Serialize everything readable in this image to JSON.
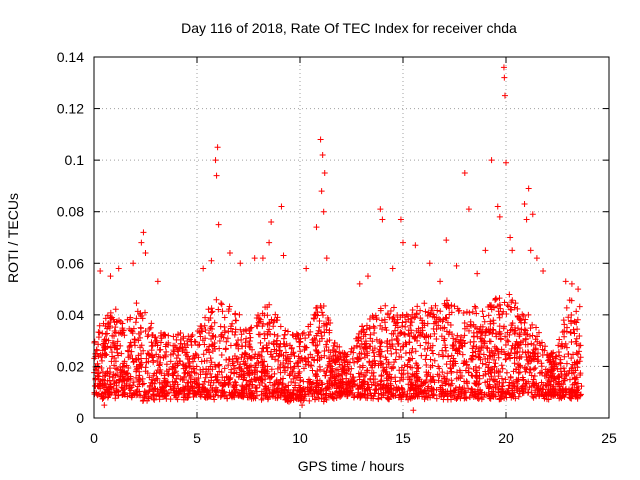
{
  "chart_data": {
    "type": "scatter",
    "title": "Day 116 of 2018, Rate Of TEC Index for receiver chda",
    "xlabel": "GPS time / hours",
    "ylabel": "ROTI / TECUs",
    "xlim": [
      0,
      25
    ],
    "ylim": [
      0,
      0.14
    ],
    "xticks": [
      0,
      5,
      10,
      15,
      20,
      25
    ],
    "yticks": [
      0,
      0.02,
      0.04,
      0.06,
      0.08,
      0.1,
      0.12,
      0.14
    ],
    "xtick_labels": [
      "0",
      "5",
      "10",
      "15",
      "20",
      "25"
    ],
    "ytick_labels": [
      "0",
      "0.02",
      "0.04",
      "0.06",
      "0.08",
      "0.1",
      "0.12",
      "0.14"
    ],
    "grid": true,
    "marker": "+",
    "color": "#ff0000",
    "x_data_range": [
      0,
      23.7
    ],
    "series": [
      {
        "name": "ROTI",
        "note": "dense band of points mostly between 0.005 and 0.045 TECU/min across the day",
        "envelope": {
          "x": [
            0,
            0.5,
            1,
            1.5,
            2,
            2.5,
            3,
            3.5,
            4,
            4.5,
            5,
            5.5,
            6,
            6.5,
            7,
            7.5,
            8,
            8.5,
            9,
            9.5,
            10,
            10.5,
            11,
            11.5,
            12,
            12.5,
            13,
            13.5,
            14,
            14.5,
            15,
            15.5,
            16,
            16.5,
            17,
            17.5,
            18,
            18.5,
            19,
            19.5,
            20,
            20.5,
            21,
            21.5,
            22,
            22.5,
            23,
            23.5
          ],
          "low": [
            0.009,
            0.008,
            0.008,
            0.008,
            0.008,
            0.007,
            0.008,
            0.008,
            0.008,
            0.008,
            0.009,
            0.008,
            0.008,
            0.008,
            0.008,
            0.008,
            0.008,
            0.008,
            0.008,
            0.007,
            0.007,
            0.007,
            0.007,
            0.008,
            0.009,
            0.009,
            0.008,
            0.008,
            0.008,
            0.008,
            0.008,
            0.008,
            0.008,
            0.008,
            0.008,
            0.008,
            0.008,
            0.008,
            0.008,
            0.008,
            0.008,
            0.008,
            0.009,
            0.008,
            0.008,
            0.008,
            0.008,
            0.008
          ],
          "high": [
            0.03,
            0.04,
            0.042,
            0.036,
            0.045,
            0.042,
            0.034,
            0.034,
            0.033,
            0.033,
            0.034,
            0.043,
            0.046,
            0.045,
            0.04,
            0.034,
            0.04,
            0.046,
            0.04,
            0.032,
            0.034,
            0.04,
            0.048,
            0.036,
            0.025,
            0.026,
            0.036,
            0.04,
            0.044,
            0.044,
            0.046,
            0.044,
            0.046,
            0.044,
            0.046,
            0.044,
            0.042,
            0.044,
            0.044,
            0.046,
            0.048,
            0.045,
            0.04,
            0.036,
            0.026,
            0.028,
            0.046,
            0.045
          ]
        },
        "outliers": [
          {
            "x": 0.3,
            "y": 0.057
          },
          {
            "x": 0.8,
            "y": 0.055
          },
          {
            "x": 1.2,
            "y": 0.058
          },
          {
            "x": 1.9,
            "y": 0.06
          },
          {
            "x": 2.3,
            "y": 0.068
          },
          {
            "x": 2.4,
            "y": 0.072
          },
          {
            "x": 2.5,
            "y": 0.064
          },
          {
            "x": 3.1,
            "y": 0.053
          },
          {
            "x": 5.3,
            "y": 0.058
          },
          {
            "x": 5.7,
            "y": 0.061
          },
          {
            "x": 5.9,
            "y": 0.1
          },
          {
            "x": 6.0,
            "y": 0.105
          },
          {
            "x": 5.95,
            "y": 0.094
          },
          {
            "x": 6.05,
            "y": 0.075
          },
          {
            "x": 6.6,
            "y": 0.064
          },
          {
            "x": 7.1,
            "y": 0.06
          },
          {
            "x": 7.8,
            "y": 0.062
          },
          {
            "x": 8.2,
            "y": 0.062
          },
          {
            "x": 8.6,
            "y": 0.076
          },
          {
            "x": 8.5,
            "y": 0.068
          },
          {
            "x": 9.1,
            "y": 0.082
          },
          {
            "x": 9.2,
            "y": 0.063
          },
          {
            "x": 10.3,
            "y": 0.058
          },
          {
            "x": 10.8,
            "y": 0.074
          },
          {
            "x": 11.0,
            "y": 0.108
          },
          {
            "x": 11.1,
            "y": 0.102
          },
          {
            "x": 11.2,
            "y": 0.095
          },
          {
            "x": 11.05,
            "y": 0.088
          },
          {
            "x": 11.15,
            "y": 0.08
          },
          {
            "x": 11.3,
            "y": 0.062
          },
          {
            "x": 12.9,
            "y": 0.052
          },
          {
            "x": 13.3,
            "y": 0.055
          },
          {
            "x": 13.9,
            "y": 0.081
          },
          {
            "x": 14.0,
            "y": 0.077
          },
          {
            "x": 14.5,
            "y": 0.058
          },
          {
            "x": 14.9,
            "y": 0.077
          },
          {
            "x": 15.0,
            "y": 0.068
          },
          {
            "x": 15.6,
            "y": 0.067
          },
          {
            "x": 16.3,
            "y": 0.06
          },
          {
            "x": 16.8,
            "y": 0.053
          },
          {
            "x": 17.1,
            "y": 0.069
          },
          {
            "x": 17.6,
            "y": 0.059
          },
          {
            "x": 18.0,
            "y": 0.095
          },
          {
            "x": 18.2,
            "y": 0.081
          },
          {
            "x": 18.6,
            "y": 0.056
          },
          {
            "x": 19.0,
            "y": 0.065
          },
          {
            "x": 19.3,
            "y": 0.1
          },
          {
            "x": 19.6,
            "y": 0.082
          },
          {
            "x": 19.7,
            "y": 0.078
          },
          {
            "x": 19.9,
            "y": 0.136
          },
          {
            "x": 19.92,
            "y": 0.132
          },
          {
            "x": 19.95,
            "y": 0.125
          },
          {
            "x": 20.0,
            "y": 0.099
          },
          {
            "x": 20.2,
            "y": 0.07
          },
          {
            "x": 20.3,
            "y": 0.065
          },
          {
            "x": 20.9,
            "y": 0.083
          },
          {
            "x": 21.1,
            "y": 0.089
          },
          {
            "x": 21.0,
            "y": 0.077
          },
          {
            "x": 21.3,
            "y": 0.079
          },
          {
            "x": 21.2,
            "y": 0.065
          },
          {
            "x": 21.5,
            "y": 0.062
          },
          {
            "x": 21.8,
            "y": 0.057
          },
          {
            "x": 22.9,
            "y": 0.053
          },
          {
            "x": 23.2,
            "y": 0.052
          },
          {
            "x": 23.5,
            "y": 0.05
          },
          {
            "x": 15.5,
            "y": 0.003
          },
          {
            "x": 10.1,
            "y": 0.005
          },
          {
            "x": 0.5,
            "y": 0.005
          }
        ]
      }
    ]
  }
}
